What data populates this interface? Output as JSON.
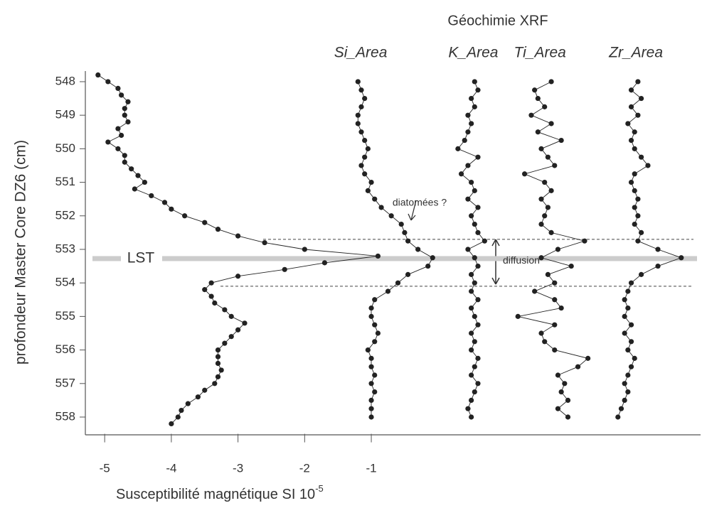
{
  "chart_data": {
    "type": "profile",
    "title": "Géochimie XRF",
    "x_label": "Susceptibilité magnétique SI 10",
    "x_label_exponent": "-5",
    "y_label": "profondeur Master Core DZ6 (cm)",
    "xlim": [
      -5.29,
      3.94
    ],
    "xticks": [
      -5,
      -4,
      -3,
      -2,
      -1
    ],
    "ylim": [
      547.7,
      558.5
    ],
    "y_inverted": true,
    "yticks": [
      548,
      549,
      550,
      551,
      552,
      553,
      554,
      555,
      556,
      557,
      558
    ],
    "color": "#222222",
    "band": {
      "label": "LST",
      "depths": [
        553.2,
        553.35
      ],
      "color": "#cccccc"
    },
    "dashed_lines": [
      552.7,
      554.1
    ],
    "annotations": [
      {
        "text": "diatomées ?",
        "depth": 552.3
      },
      {
        "text": "diffusion",
        "depth": 553.35
      }
    ],
    "series": [
      {
        "x": [
          -5.1,
          -4.95,
          -4.8,
          -4.75,
          -4.65,
          -4.7,
          -4.7,
          -4.65,
          -4.8,
          -4.75,
          -4.95,
          -4.8,
          -4.7,
          -4.7,
          -4.6,
          -4.5,
          -4.4,
          -4.55,
          -4.3,
          -4.1,
          -4.0,
          -3.8,
          -3.5,
          -3.3,
          -3.0,
          -2.6,
          -2.0,
          -0.9,
          -1.7,
          -2.3,
          -3.0,
          -3.4,
          -3.5,
          -3.4,
          -3.35,
          -3.2,
          -3.1,
          -2.9,
          -3.0,
          -3.1,
          -3.2,
          -3.3,
          -3.3,
          -3.3,
          -3.25,
          -3.3,
          -3.35,
          -3.5,
          -3.6,
          -3.75,
          -3.85,
          -3.9,
          -4.0
        ],
        "y": [
          547.8,
          548.0,
          548.2,
          548.4,
          548.6,
          548.8,
          549.0,
          549.2,
          549.4,
          549.6,
          549.8,
          550.0,
          550.2,
          550.4,
          550.6,
          550.8,
          551.0,
          551.2,
          551.4,
          551.6,
          551.8,
          552.0,
          552.2,
          552.4,
          552.6,
          552.8,
          553.0,
          553.2,
          553.4,
          553.6,
          553.8,
          554.0,
          554.2,
          554.4,
          554.6,
          554.8,
          555.0,
          555.2,
          555.4,
          555.6,
          555.8,
          556.0,
          556.2,
          556.4,
          556.6,
          556.8,
          557.0,
          557.2,
          557.4,
          557.6,
          557.8,
          558.0,
          558.2
        ]
      },
      {
        "name": "Si_Area",
        "x": [
          -1.2,
          -1.15,
          -1.1,
          -1.15,
          -1.2,
          -1.2,
          -1.15,
          -1.1,
          -1.05,
          -1.1,
          -1.15,
          -1.1,
          -1.0,
          -1.05,
          -0.95,
          -0.85,
          -0.7,
          -0.55,
          -0.5,
          -0.45,
          -0.3,
          -0.08,
          -0.15,
          -0.45,
          -0.6,
          -0.75,
          -0.95,
          -1.0,
          -1.0,
          -0.95,
          -0.9,
          -0.95,
          -1.05,
          -1.0,
          -1.0,
          -0.95,
          -1.0,
          -0.95,
          -1.0,
          -1.0,
          -1.0
        ],
        "y": [
          548,
          548.25,
          548.5,
          548.75,
          549,
          549.25,
          549.5,
          549.75,
          550,
          550.25,
          550.5,
          550.75,
          551,
          551.25,
          551.5,
          551.75,
          552,
          552.25,
          552.5,
          552.75,
          553,
          553.25,
          553.5,
          553.75,
          554,
          554.25,
          554.5,
          554.75,
          555,
          555.25,
          555.5,
          555.75,
          556,
          556.25,
          556.5,
          556.75,
          557,
          557.25,
          557.5,
          557.75,
          558
        ]
      },
      {
        "name": "K_Area",
        "x": [
          0.55,
          0.6,
          0.5,
          0.55,
          0.45,
          0.5,
          0.45,
          0.4,
          0.3,
          0.6,
          0.45,
          0.35,
          0.5,
          0.55,
          0.45,
          0.6,
          0.5,
          0.55,
          0.6,
          0.7,
          0.45,
          0.55,
          0.6,
          0.5,
          0.55,
          0.5,
          0.6,
          0.5,
          0.55,
          0.6,
          0.5,
          0.55,
          0.5,
          0.6,
          0.55,
          0.5,
          0.6,
          0.55,
          0.5,
          0.45,
          0.5
        ],
        "y": [
          548,
          548.25,
          548.5,
          548.75,
          549,
          549.25,
          549.5,
          549.75,
          550,
          550.25,
          550.5,
          550.75,
          551,
          551.25,
          551.5,
          551.75,
          552,
          552.25,
          552.5,
          552.75,
          553,
          553.25,
          553.5,
          553.75,
          554,
          554.25,
          554.5,
          554.75,
          555,
          555.25,
          555.5,
          555.75,
          556,
          556.25,
          556.5,
          556.75,
          557,
          557.25,
          557.5,
          557.75,
          558
        ]
      },
      {
        "name": "Ti_Area",
        "x": [
          1.7,
          1.45,
          1.5,
          1.6,
          1.4,
          1.7,
          1.5,
          1.85,
          1.55,
          1.65,
          1.75,
          1.3,
          1.6,
          1.7,
          1.55,
          1.65,
          1.6,
          1.55,
          1.7,
          2.2,
          1.8,
          1.55,
          2.0,
          1.65,
          1.75,
          1.45,
          1.75,
          1.85,
          1.2,
          1.75,
          1.55,
          1.6,
          1.75,
          2.25,
          2.1,
          1.8,
          1.9,
          1.85,
          1.95,
          1.8,
          1.95
        ],
        "y": [
          548,
          548.25,
          548.5,
          548.75,
          549,
          549.25,
          549.5,
          549.75,
          550,
          550.25,
          550.5,
          550.75,
          551,
          551.25,
          551.5,
          551.75,
          552,
          552.25,
          552.5,
          552.75,
          553,
          553.25,
          553.5,
          553.75,
          554,
          554.25,
          554.5,
          554.75,
          555,
          555.25,
          555.5,
          555.75,
          556,
          556.25,
          556.5,
          556.75,
          557,
          557.25,
          557.5,
          557.75,
          558
        ]
      },
      {
        "name": "Zr_Area",
        "x": [
          3.0,
          2.9,
          3.05,
          2.9,
          3.0,
          2.85,
          2.95,
          2.9,
          2.95,
          3.05,
          3.15,
          2.95,
          2.9,
          2.95,
          3.0,
          2.95,
          3.0,
          2.95,
          3.05,
          3.0,
          3.3,
          3.65,
          3.3,
          3.05,
          2.9,
          2.85,
          2.8,
          2.85,
          2.8,
          2.9,
          2.8,
          2.9,
          2.85,
          2.95,
          2.9,
          2.85,
          2.8,
          2.85,
          2.8,
          2.75,
          2.7
        ],
        "y": [
          548,
          548.25,
          548.5,
          548.75,
          549,
          549.25,
          549.5,
          549.75,
          550,
          550.25,
          550.5,
          550.75,
          551,
          551.25,
          551.5,
          551.75,
          552,
          552.25,
          552.5,
          552.75,
          553,
          553.25,
          553.5,
          553.75,
          554,
          554.25,
          554.5,
          554.75,
          555,
          555.25,
          555.5,
          555.75,
          556,
          556.25,
          556.5,
          556.75,
          557,
          557.25,
          557.5,
          557.75,
          558
        ]
      }
    ]
  }
}
